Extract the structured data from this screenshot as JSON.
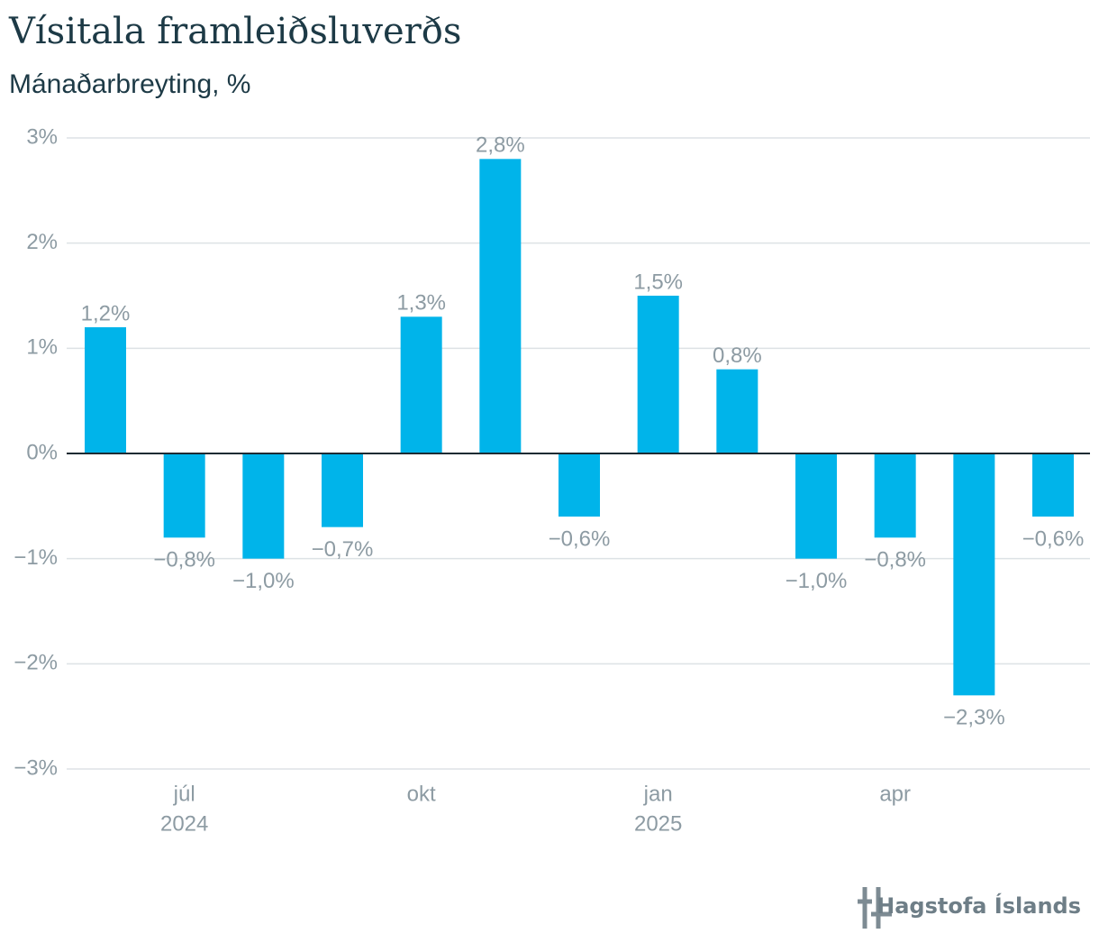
{
  "chart_data": {
    "type": "bar",
    "title": "Vísitala framleiðsluverðs",
    "subtitle": "Mánaðarbreyting, %",
    "categories": [
      null,
      "júl",
      null,
      null,
      "okt",
      null,
      null,
      "jan",
      null,
      null,
      "apr",
      null,
      null
    ],
    "year_labels": [
      null,
      "2024",
      null,
      null,
      null,
      null,
      null,
      "2025",
      null,
      null,
      null,
      null,
      null
    ],
    "values": [
      1.2,
      -0.8,
      -1.0,
      -0.7,
      1.3,
      2.8,
      -0.6,
      1.5,
      0.8,
      -1.0,
      -0.8,
      -2.3,
      -0.6
    ],
    "value_labels": [
      "1,2%",
      "−0,8%",
      "−1,0%",
      "−0,7%",
      "1,3%",
      "2,8%",
      "−0,6%",
      "1,5%",
      "0,8%",
      "−1,0%",
      "−0,8%",
      "−2,3%",
      "−0,6%"
    ],
    "color": "#00b4ea",
    "ylim": [
      -3,
      3
    ],
    "yticks": [
      {
        "value": 3,
        "label": "3%"
      },
      {
        "value": 2,
        "label": "2%"
      },
      {
        "value": 1,
        "label": "1%"
      },
      {
        "value": 0,
        "label": "0%"
      },
      {
        "value": -1,
        "label": "−1%"
      },
      {
        "value": -2,
        "label": "−2%"
      },
      {
        "value": -3,
        "label": "−3%"
      }
    ],
    "grid": true,
    "source": "Hagstofa Íslands"
  }
}
